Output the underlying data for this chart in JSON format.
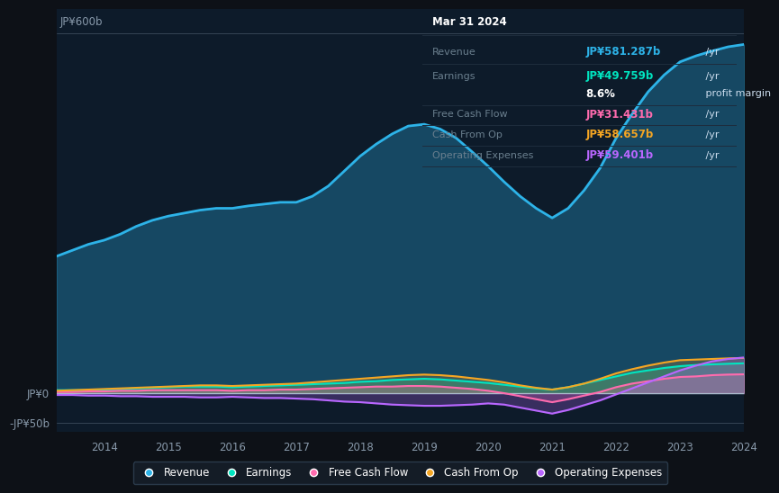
{
  "background_color": "#0d1117",
  "plot_bg_color": "#0d1b2a",
  "title": "Mar 31 2024",
  "colors": {
    "revenue": "#2db3e8",
    "earnings": "#00e5c0",
    "free_cash_flow": "#ff6bae",
    "cash_from_op": "#f5a623",
    "operating_expenses": "#b967ff"
  },
  "years": [
    2013.25,
    2013.5,
    2013.75,
    2014.0,
    2014.25,
    2014.5,
    2014.75,
    2015.0,
    2015.25,
    2015.5,
    2015.75,
    2016.0,
    2016.25,
    2016.5,
    2016.75,
    2017.0,
    2017.25,
    2017.5,
    2017.75,
    2018.0,
    2018.25,
    2018.5,
    2018.75,
    2019.0,
    2019.25,
    2019.5,
    2019.75,
    2020.0,
    2020.25,
    2020.5,
    2020.75,
    2021.0,
    2021.25,
    2021.5,
    2021.75,
    2022.0,
    2022.25,
    2022.5,
    2022.75,
    2023.0,
    2023.25,
    2023.5,
    2023.75,
    2024.0
  ],
  "revenue": [
    228,
    238,
    248,
    255,
    265,
    278,
    288,
    295,
    300,
    305,
    308,
    308,
    312,
    315,
    318,
    318,
    328,
    345,
    370,
    395,
    415,
    432,
    445,
    448,
    440,
    425,
    402,
    378,
    352,
    328,
    308,
    292,
    308,
    338,
    375,
    425,
    465,
    502,
    530,
    552,
    562,
    570,
    577,
    581
  ],
  "earnings": [
    5,
    5,
    5,
    6,
    7,
    8,
    9,
    10,
    11,
    11,
    11,
    10,
    11,
    12,
    13,
    14,
    15,
    16,
    17,
    19,
    20,
    22,
    23,
    24,
    23,
    21,
    19,
    17,
    14,
    11,
    8,
    6,
    10,
    16,
    22,
    28,
    34,
    38,
    42,
    45,
    47,
    48,
    49,
    49.759
  ],
  "free_cash_flow": [
    2,
    2,
    3,
    3,
    4,
    4,
    5,
    5,
    5,
    5,
    5,
    4,
    5,
    5,
    6,
    6,
    7,
    8,
    9,
    10,
    11,
    11,
    12,
    12,
    11,
    9,
    7,
    4,
    0,
    -5,
    -10,
    -15,
    -10,
    -4,
    2,
    10,
    16,
    20,
    24,
    27,
    28,
    30,
    31,
    31.431
  ],
  "cash_from_op": [
    4,
    5,
    6,
    7,
    8,
    9,
    10,
    11,
    12,
    13,
    13,
    12,
    13,
    14,
    15,
    16,
    18,
    20,
    22,
    24,
    26,
    28,
    30,
    31,
    30,
    28,
    25,
    22,
    18,
    13,
    9,
    6,
    10,
    16,
    24,
    33,
    40,
    46,
    51,
    55,
    56,
    57,
    58,
    58.657
  ],
  "operating_expenses": [
    -3,
    -3,
    -4,
    -4,
    -5,
    -5,
    -6,
    -6,
    -6,
    -7,
    -7,
    -6,
    -7,
    -8,
    -8,
    -9,
    -10,
    -12,
    -14,
    -15,
    -17,
    -19,
    -20,
    -21,
    -21,
    -20,
    -19,
    -17,
    -19,
    -24,
    -29,
    -34,
    -28,
    -20,
    -12,
    -2,
    8,
    18,
    28,
    38,
    46,
    53,
    57,
    59.401
  ],
  "xlabel_years": [
    2014,
    2015,
    2016,
    2017,
    2018,
    2019,
    2020,
    2021,
    2022,
    2023,
    2024
  ],
  "legend": [
    {
      "label": "Revenue",
      "color": "#2db3e8"
    },
    {
      "label": "Earnings",
      "color": "#00e5c0"
    },
    {
      "label": "Free Cash Flow",
      "color": "#ff6bae"
    },
    {
      "label": "Cash From Op",
      "color": "#f5a623"
    },
    {
      "label": "Operating Expenses",
      "color": "#b967ff"
    }
  ],
  "tooltip": {
    "title": "Mar 31 2024",
    "rows": [
      {
        "label": "Revenue",
        "value": "JP¥581.287b",
        "unit": " /yr",
        "color": "#2db3e8"
      },
      {
        "label": "Earnings",
        "value": "JP¥49.759b",
        "unit": " /yr",
        "color": "#00e5c0"
      },
      {
        "label": "",
        "value": "8.6%",
        "unit": " profit margin",
        "color": "#ffffff"
      },
      {
        "label": "Free Cash Flow",
        "value": "JP¥31.431b",
        "unit": " /yr",
        "color": "#ff6bae"
      },
      {
        "label": "Cash From Op",
        "value": "JP¥58.657b",
        "unit": " /yr",
        "color": "#f5a623"
      },
      {
        "label": "Operating Expenses",
        "value": "JP¥59.401b",
        "unit": " /yr",
        "color": "#b967ff"
      }
    ]
  }
}
